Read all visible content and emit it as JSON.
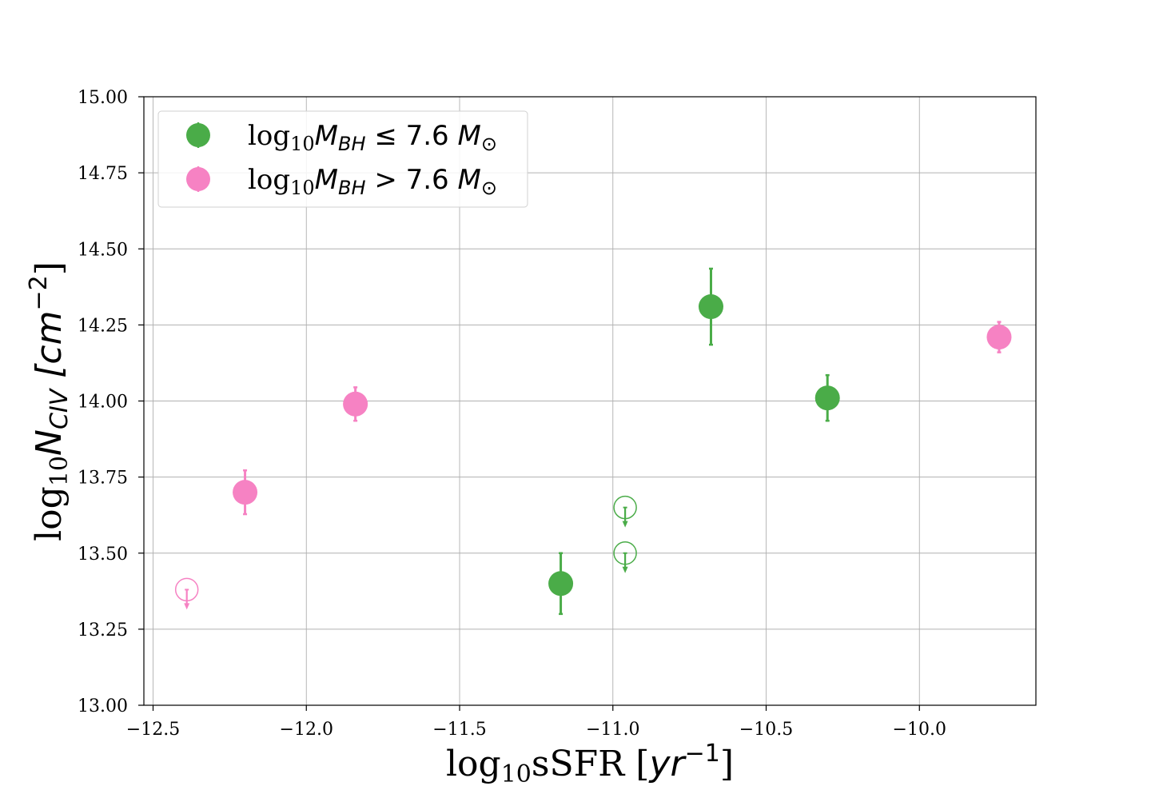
{
  "chart_data": {
    "type": "scatter",
    "xlabel": {
      "prefix": "log",
      "sub": "10",
      "main": "sSFR [",
      "unit": "yr",
      "sup": "−1",
      "suffix": "]"
    },
    "ylabel": {
      "prefix": "log",
      "sub": "10",
      "main": "N",
      "msub": "CIV",
      "unit": " [cm",
      "sup": "−2",
      "suffix": "]"
    },
    "xlim": [
      -12.53,
      -9.62
    ],
    "ylim": [
      13.0,
      15.0
    ],
    "xticks": [
      -12.5,
      -12.0,
      -11.5,
      -11.0,
      -10.5,
      -10.0
    ],
    "xtick_labels": [
      "−12.5",
      "−12.0",
      "−11.5",
      "−11.0",
      "−10.5",
      "−10.0"
    ],
    "yticks": [
      13.0,
      13.25,
      13.5,
      13.75,
      14.0,
      14.25,
      14.5,
      14.75,
      15.0
    ],
    "ytick_labels": [
      "13.00",
      "13.25",
      "13.50",
      "13.75",
      "14.00",
      "14.25",
      "14.50",
      "14.75",
      "15.00"
    ],
    "grid": true,
    "legend_placement": "top-left",
    "series": [
      {
        "name": {
          "prefix": "log",
          "sub": "10",
          "main": "M",
          "msub": "BH",
          "rel": " ≤  7.6 ",
          "unit": "M",
          "usub": "⊙"
        },
        "color": "#4aac48",
        "points": [
          {
            "x": -11.17,
            "y": 13.4,
            "yerr": 0.1
          },
          {
            "x": -10.68,
            "y": 14.31,
            "yerr": 0.125
          },
          {
            "x": -10.3,
            "y": 14.01,
            "yerr": 0.075
          }
        ],
        "upper_limits": [
          {
            "x": -10.96,
            "y": 13.65
          },
          {
            "x": -10.96,
            "y": 13.5
          }
        ]
      },
      {
        "name": {
          "prefix": "log",
          "sub": "10",
          "main": "M",
          "msub": "BH",
          "rel": " > 7.6 ",
          "unit": "M",
          "usub": "⊙"
        },
        "color": "#f682c3",
        "points": [
          {
            "x": -12.2,
            "y": 13.7,
            "yerr": 0.072
          },
          {
            "x": -11.84,
            "y": 13.99,
            "yerr": 0.055
          },
          {
            "x": -9.74,
            "y": 14.21,
            "yerr": 0.05
          }
        ],
        "upper_limits": [
          {
            "x": -12.39,
            "y": 13.38
          }
        ]
      }
    ]
  }
}
